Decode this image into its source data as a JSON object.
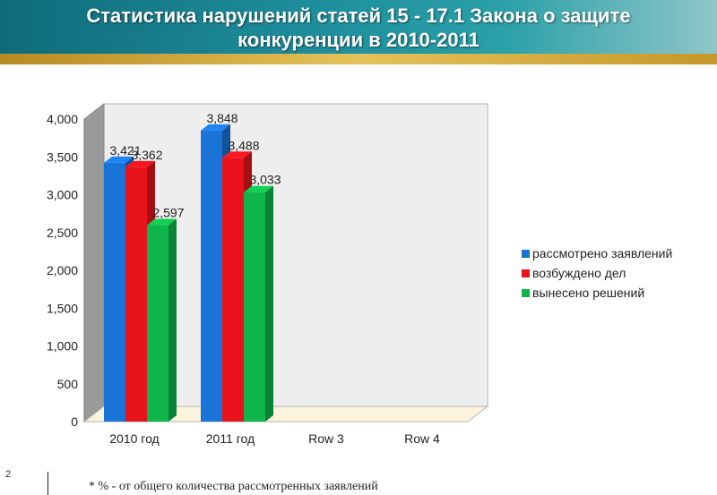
{
  "title": {
    "line1": "Статистика нарушений статей 15 - 17.1 Закона о защите",
    "line2": "конкуренции в 2010-2011"
  },
  "page_number": "2",
  "footnote": "* % - от общего количества рассмотренных заявлений",
  "colors": {
    "header": "#1f8f9d",
    "accent_stripe": "#e4c25a"
  },
  "chart_data": {
    "type": "bar",
    "title": "",
    "xlabel": "",
    "ylabel": "",
    "categories": [
      "2010 год",
      "2011 год",
      "Row 3",
      "Row 4"
    ],
    "ylim": [
      0,
      4000
    ],
    "yticks": [
      "0",
      "500",
      "1,000",
      "1,500",
      "2,000",
      "2,500",
      "3,000",
      "3,500",
      "4,000"
    ],
    "grid": false,
    "legend_position": "right",
    "series": [
      {
        "name": "рассмотрено заявлений",
        "color": "#1a73d6",
        "values": [
          3421,
          3848,
          null,
          null
        ],
        "labels": [
          "3,421",
          "3,848",
          "",
          ""
        ]
      },
      {
        "name": "возбуждено дел",
        "color": "#e8131b",
        "values": [
          3362,
          3488,
          null,
          null
        ],
        "labels": [
          "3,362",
          "3,488",
          "",
          ""
        ]
      },
      {
        "name": "вынесено решений",
        "color": "#0fb54a",
        "values": [
          2597,
          3033,
          null,
          null
        ],
        "labels": [
          "2,597",
          "3,033",
          "",
          ""
        ]
      }
    ]
  }
}
